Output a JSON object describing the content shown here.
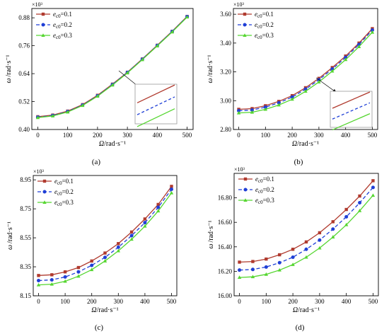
{
  "chart_data": [
    {
      "type": "line",
      "panel_label": "(a)",
      "x_symbol": "Ω",
      "x_unit": "/rad·s⁻¹",
      "y_symbol": "ω",
      "y_unit": "/rad·s⁻¹",
      "y_multiplier": "×10³",
      "ylim": [
        0.4,
        0.92
      ],
      "yticks": [
        "0.40",
        "0.52",
        "0.64",
        "0.76",
        "0.88"
      ],
      "xlim": [
        -20,
        520
      ],
      "xticks": [
        "0",
        "100",
        "200",
        "300",
        "400",
        "500"
      ],
      "x": [
        0,
        50,
        100,
        150,
        200,
        250,
        300,
        350,
        400,
        450,
        500
      ],
      "series": [
        {
          "name": "e_c0=0.1",
          "label_main": "e",
          "label_sub": "c0",
          "label_val": "=0.1",
          "color": "#b03a2e",
          "marker": "square",
          "dash": "solid",
          "values": [
            0.455,
            0.462,
            0.479,
            0.507,
            0.547,
            0.595,
            0.646,
            0.703,
            0.762,
            0.822,
            0.886
          ]
        },
        {
          "name": "e_c0=0.2",
          "label_main": "e",
          "label_sub": "c0",
          "label_val": "=0.2",
          "color": "#1f3fd6",
          "marker": "circle",
          "dash": "dash",
          "values": [
            0.453,
            0.46,
            0.477,
            0.505,
            0.545,
            0.593,
            0.645,
            0.702,
            0.761,
            0.821,
            0.885
          ]
        },
        {
          "name": "e_c0=0.3",
          "label_main": "e",
          "label_sub": "c0",
          "label_val": "=0.3",
          "color": "#55d630",
          "marker": "triangle",
          "dash": "solid",
          "values": [
            0.451,
            0.458,
            0.475,
            0.503,
            0.543,
            0.591,
            0.643,
            0.7,
            0.759,
            0.819,
            0.883
          ]
        }
      ],
      "legend": "top-left",
      "inset": true
    },
    {
      "type": "line",
      "panel_label": "(b)",
      "x_symbol": "Ω",
      "x_unit": "/rad·s⁻¹",
      "y_symbol": "ω",
      "y_unit": "/rad·s⁻¹",
      "y_multiplier": "×10³",
      "ylim": [
        2.8,
        3.64
      ],
      "yticks": [
        "2.80",
        "3.00",
        "3.20",
        "3.40",
        "3.60"
      ],
      "xlim": [
        -20,
        520
      ],
      "xticks": [
        "0",
        "100",
        "200",
        "300",
        "400",
        "500"
      ],
      "x": [
        0,
        50,
        100,
        150,
        200,
        250,
        300,
        350,
        400,
        450,
        500
      ],
      "series": [
        {
          "name": "e_c0=0.1",
          "label_main": "e",
          "label_sub": "c0",
          "label_val": "=0.1",
          "color": "#b03a2e",
          "marker": "square",
          "dash": "solid",
          "values": [
            2.94,
            2.945,
            2.965,
            2.995,
            3.035,
            3.09,
            3.155,
            3.23,
            3.31,
            3.4,
            3.5
          ]
        },
        {
          "name": "e_c0=0.2",
          "label_main": "e",
          "label_sub": "c0",
          "label_val": "=0.2",
          "color": "#1f3fd6",
          "marker": "circle",
          "dash": "dash",
          "values": [
            2.93,
            2.935,
            2.955,
            2.985,
            3.025,
            3.08,
            3.145,
            3.22,
            3.3,
            3.39,
            3.49
          ]
        },
        {
          "name": "e_c0=0.3",
          "label_main": "e",
          "label_sub": "c0",
          "label_val": "=0.3",
          "color": "#55d630",
          "marker": "triangle",
          "dash": "solid",
          "values": [
            2.915,
            2.92,
            2.94,
            2.97,
            3.01,
            3.065,
            3.13,
            3.205,
            3.285,
            3.375,
            3.475
          ]
        }
      ],
      "legend": "top-left",
      "inset": true
    },
    {
      "type": "line",
      "panel_label": "(c)",
      "x_symbol": "Ω",
      "x_unit": "/rad·s⁻¹",
      "y_symbol": "ω",
      "y_unit": "/rad·s⁻¹",
      "y_multiplier": "×10³",
      "ylim": [
        8.15,
        8.98
      ],
      "yticks": [
        "8.15",
        "8.35",
        "8.55",
        "8.75",
        "8.95"
      ],
      "xlim": [
        -20,
        520
      ],
      "xticks": [
        "0",
        "100",
        "200",
        "300",
        "400",
        "500"
      ],
      "x": [
        0,
        50,
        100,
        150,
        200,
        250,
        300,
        350,
        400,
        450,
        500
      ],
      "series": [
        {
          "name": "e_c0=0.1",
          "label_main": "e",
          "label_sub": "c0",
          "label_val": "=0.1",
          "color": "#b03a2e",
          "marker": "square",
          "dash": "solid",
          "values": [
            8.29,
            8.295,
            8.315,
            8.345,
            8.39,
            8.445,
            8.51,
            8.59,
            8.68,
            8.78,
            8.905
          ]
        },
        {
          "name": "e_c0=0.2",
          "label_main": "e",
          "label_sub": "c0",
          "label_val": "=0.2",
          "color": "#1f3fd6",
          "marker": "circle",
          "dash": "dash",
          "values": [
            8.255,
            8.26,
            8.28,
            8.315,
            8.36,
            8.415,
            8.485,
            8.565,
            8.655,
            8.76,
            8.885
          ]
        },
        {
          "name": "e_c0=0.3",
          "label_main": "e",
          "label_sub": "c0",
          "label_val": "=0.3",
          "color": "#55d630",
          "marker": "triangle",
          "dash": "solid",
          "values": [
            8.225,
            8.23,
            8.25,
            8.285,
            8.33,
            8.39,
            8.46,
            8.54,
            8.63,
            8.735,
            8.86
          ]
        }
      ],
      "legend": "top-left",
      "inset": false
    },
    {
      "type": "line",
      "panel_label": "(d)",
      "x_symbol": "Ω",
      "x_unit": "/rad·s⁻¹",
      "y_symbol": "ω",
      "y_unit": "/rad·s⁻¹",
      "y_multiplier": "×10³",
      "ylim": [
        16.0,
        17.0
      ],
      "yticks": [
        "16.00",
        "16.20",
        "16.40",
        "16.60",
        "16.80"
      ],
      "xlim": [
        -20,
        520
      ],
      "xticks": [
        "0",
        "100",
        "200",
        "300",
        "400",
        "500"
      ],
      "x": [
        0,
        50,
        100,
        150,
        200,
        250,
        300,
        350,
        400,
        450,
        500
      ],
      "series": [
        {
          "name": "e_c0=0.1",
          "label_main": "e",
          "label_sub": "c0",
          "label_val": "=0.1",
          "color": "#b03a2e",
          "marker": "square",
          "dash": "solid",
          "values": [
            16.275,
            16.28,
            16.3,
            16.335,
            16.38,
            16.44,
            16.515,
            16.605,
            16.705,
            16.815,
            16.94
          ]
        },
        {
          "name": "e_c0=0.2",
          "label_main": "e",
          "label_sub": "c0",
          "label_val": "=0.2",
          "color": "#1f3fd6",
          "marker": "circle",
          "dash": "dash",
          "values": [
            16.21,
            16.215,
            16.235,
            16.27,
            16.315,
            16.38,
            16.455,
            16.545,
            16.645,
            16.76,
            16.885
          ]
        },
        {
          "name": "e_c0=0.3",
          "label_main": "e",
          "label_sub": "c0",
          "label_val": "=0.3",
          "color": "#55d630",
          "marker": "triangle",
          "dash": "solid",
          "values": [
            16.15,
            16.155,
            16.175,
            16.21,
            16.255,
            16.315,
            16.39,
            16.48,
            16.58,
            16.695,
            16.82
          ]
        }
      ],
      "legend": "top-left",
      "inset": false
    }
  ]
}
